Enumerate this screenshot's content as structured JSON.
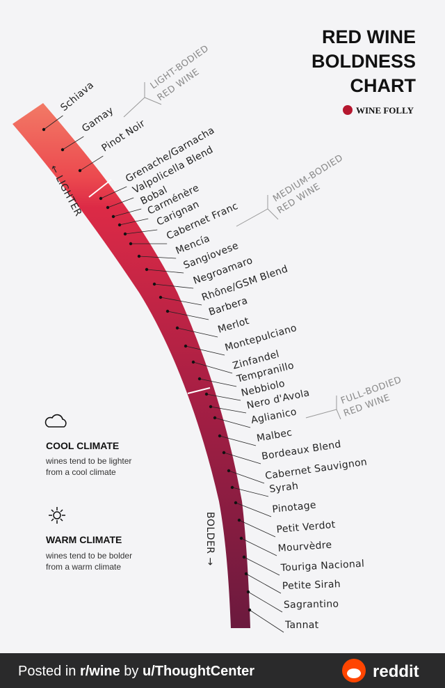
{
  "header": {
    "title": [
      "RED WINE",
      "BOLDNESS",
      "CHART"
    ],
    "brand": "WINE FOLLY"
  },
  "scale": {
    "lighter": "← LIGHTER",
    "bolder": "BOLDER →"
  },
  "groups": [
    {
      "label": [
        "LIGHT-BODIED",
        "RED WINE"
      ]
    },
    {
      "label": [
        "MEDIUM-BODIED",
        "RED WINE"
      ]
    },
    {
      "label": [
        "FULL-BODIED",
        "RED WINE"
      ]
    }
  ],
  "wines": [
    "Schiava",
    "Gamay",
    "Pinot Noir",
    "Grenache/Garnacha",
    "Valpolicella Blend",
    "Bobal",
    "Carménère",
    "Carignan",
    "Cabernet Franc",
    "Mencía",
    "Sangiovese",
    "Negroamaro",
    "Rhône/GSM Blend",
    "Barbera",
    "Merlot",
    "Montepulciano",
    "Zinfandel",
    "Tempranillo",
    "Nebbiolo",
    "Nero d'Avola",
    "Aglianico",
    "Malbec",
    "Bordeaux Blend",
    "Cabernet Sauvignon",
    "Syrah",
    "Pinotage",
    "Petit Verdot",
    "Mourvèdre",
    "Touriga Nacional",
    "Petite Sirah",
    "Sagrantino",
    "Tannat"
  ],
  "legend": [
    {
      "title": "COOL CLIMATE",
      "text": [
        "wines tend to be lighter",
        "from a cool climate"
      ]
    },
    {
      "title": "WARM CLIMATE",
      "text": [
        "wines tend to be bolder",
        "from a warm climate"
      ]
    }
  ],
  "footer": {
    "parts": [
      "Posted in ",
      "r/wine",
      " by ",
      "u/ThoughtCenter"
    ],
    "brand": "reddit"
  }
}
